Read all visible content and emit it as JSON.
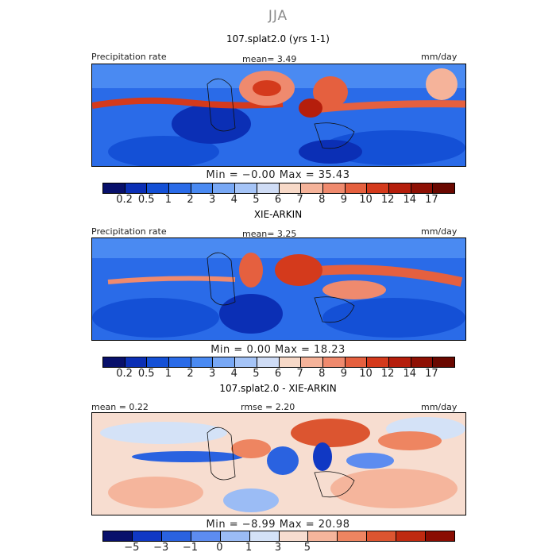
{
  "season": "JJA",
  "panels": [
    {
      "title": "107.splat2.0 (yrs 1-1)",
      "left_label": "Precipitation rate",
      "center_label": "mean=   3.49",
      "right_label": "mm/day",
      "min_max": "Min =  −0.00  Max =  35.43"
    },
    {
      "title": "XIE-ARKIN",
      "left_label": "Precipitation rate",
      "center_label": "mean=   3.25",
      "right_label": "mm/day",
      "min_max": "Min =   0.00  Max =  18.23"
    },
    {
      "title": "107.splat2.0 - XIE-ARKIN",
      "left_label": "mean =   0.22",
      "center_label": "rmse =   2.20",
      "right_label": "mm/day",
      "min_max": "Min =  −8.99  Max =  20.98"
    }
  ],
  "abs_colorbar": {
    "ticks": [
      "0.2",
      "0.5",
      "1",
      "2",
      "3",
      "4",
      "5",
      "6",
      "7",
      "8",
      "9",
      "10",
      "12",
      "14",
      "17"
    ],
    "colors": [
      "#08106b",
      "#0b2fb5",
      "#1450d6",
      "#2a6be8",
      "#4a8af2",
      "#78a8f5",
      "#a5c4f7",
      "#cfdcf5",
      "#f7d9c8",
      "#f5b39a",
      "#ef8a6e",
      "#e5603f",
      "#d43a1c",
      "#b51e0c",
      "#8e1004",
      "#6a0800"
    ]
  },
  "diff_colorbar": {
    "ticks": [
      "−5",
      "−3",
      "−1",
      "0",
      "1",
      "3",
      "5"
    ],
    "colors": [
      "#08106b",
      "#1038c4",
      "#2a62e0",
      "#5d8cf0",
      "#9bbcf5",
      "#d4e2f7",
      "#f7ddd0",
      "#f5b59c",
      "#ee8561",
      "#dc5530",
      "#bf2a10",
      "#8a0d02"
    ]
  }
}
